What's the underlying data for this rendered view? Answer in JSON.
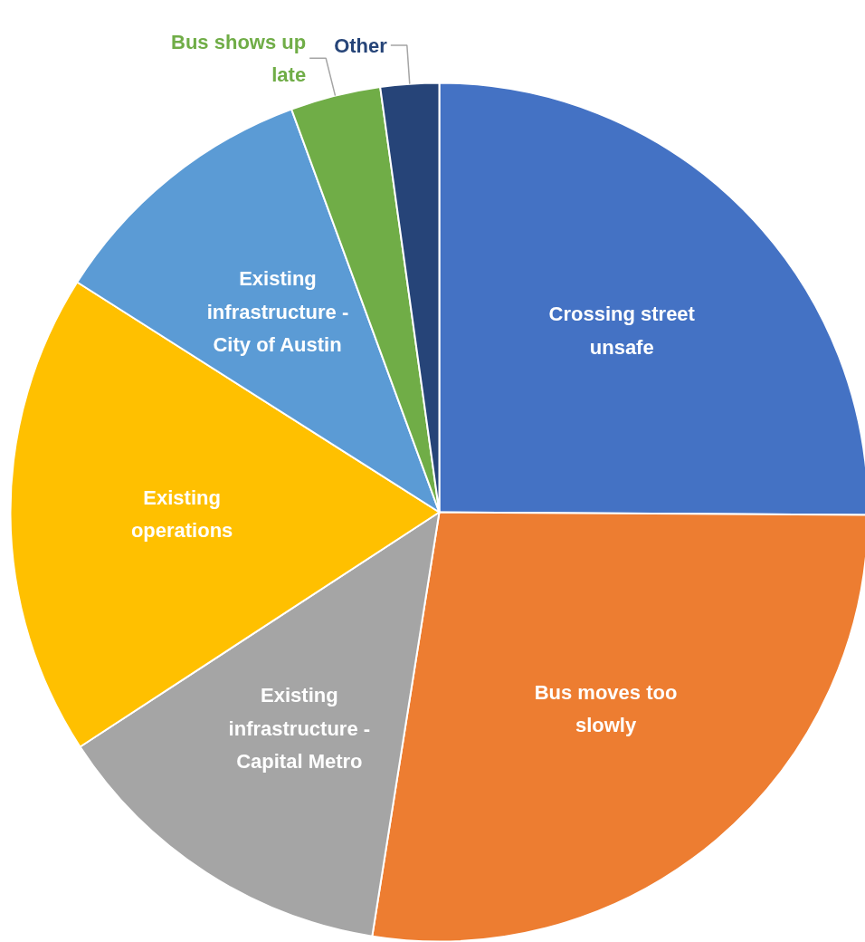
{
  "chart_data": {
    "type": "pie",
    "categories": [
      "Crossing street unsafe",
      "Bus moves too slowly",
      "Existing infrastructure - Capital Metro",
      "Existing operations",
      "Existing infrastructure - City of Austin",
      "Bus shows up late",
      "Other"
    ],
    "values": [
      25.1,
      27.4,
      13.3,
      18.2,
      10.4,
      3.4,
      2.2
    ],
    "colors": [
      "#4472c4",
      "#ed7d31",
      "#a5a5a5",
      "#ffc000",
      "#5b9bd5",
      "#70ad47",
      "#264478"
    ],
    "legend": false
  }
}
